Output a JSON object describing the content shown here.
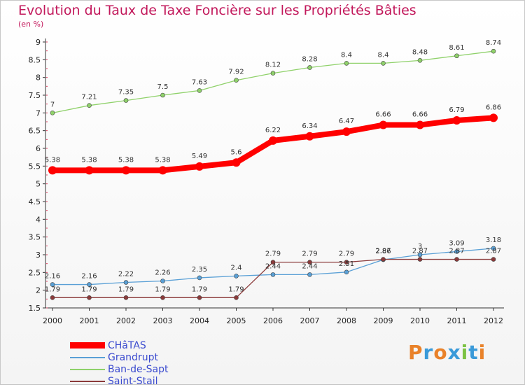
{
  "header": {
    "title": "Evolution du Taux de Taxe Foncière sur les Propriétés Bâties",
    "unit": "(en %)"
  },
  "logo": {
    "text": "Proxiti",
    "letters": [
      "P",
      "r",
      "o",
      "x",
      "i",
      "t",
      "i"
    ],
    "colors": [
      "#e9822a",
      "#3a9ad9",
      "#e9822a",
      "#3a9ad9",
      "#7cc242",
      "#3a9ad9",
      "#e9822a"
    ]
  },
  "chart_data": {
    "type": "line",
    "title": "Evolution du Taux de Taxe Foncière sur les Propriétés Bâties",
    "ylabel": "(en %)",
    "xlabel": "",
    "x": [
      2000,
      2001,
      2002,
      2003,
      2004,
      2005,
      2006,
      2007,
      2008,
      2009,
      2010,
      2011,
      2012
    ],
    "ylim": [
      1.5,
      9
    ],
    "yticks": [
      1.5,
      2,
      2.5,
      3,
      3.5,
      4,
      4.5,
      5,
      5.5,
      6,
      6.5,
      7,
      7.5,
      8,
      8.5,
      9
    ],
    "grid": false,
    "legend_position": "bottom-left",
    "series": [
      {
        "name": "CHâTAS",
        "color": "#ff0000",
        "width": 8,
        "marker": 6,
        "values": [
          5.38,
          5.38,
          5.38,
          5.38,
          5.49,
          5.6,
          6.22,
          6.34,
          6.47,
          6.66,
          6.66,
          6.79,
          6.86
        ],
        "labels": [
          "5.38",
          "5.38",
          "5.38",
          "5.38",
          "5.49",
          "5.6",
          "6.22",
          "6.34",
          "6.47",
          "6.66",
          "6.66",
          "6.79",
          "6.86"
        ]
      },
      {
        "name": "Grandrupt",
        "color": "#5aa0d6",
        "width": 1.3,
        "marker": 3,
        "values": [
          2.16,
          2.16,
          2.22,
          2.26,
          2.35,
          2.4,
          2.44,
          2.44,
          2.51,
          2.86,
          3.0,
          3.09,
          3.18
        ],
        "labels": [
          "2.16",
          "2.16",
          "2.22",
          "2.26",
          "2.35",
          "2.4",
          "2.44",
          "2.44",
          "2.51",
          "2.86",
          "3",
          "3.09",
          "3.18"
        ]
      },
      {
        "name": "Ban-de-Sapt",
        "color": "#8fd16a",
        "width": 1.3,
        "marker": 3,
        "values": [
          7.0,
          7.21,
          7.35,
          7.5,
          7.63,
          7.92,
          8.12,
          8.28,
          8.4,
          8.4,
          8.48,
          8.61,
          8.74
        ],
        "labels": [
          "7",
          "7.21",
          "7.35",
          "7.5",
          "7.63",
          "7.92",
          "8.12",
          "8.28",
          "8.4",
          "8.4",
          "8.48",
          "8.61",
          "8.74"
        ]
      },
      {
        "name": "Saint-Stail",
        "color": "#8b3a3a",
        "width": 1.3,
        "marker": 3,
        "values": [
          1.79,
          1.79,
          1.79,
          1.79,
          1.79,
          1.79,
          2.79,
          2.79,
          2.79,
          2.87,
          2.87,
          2.87,
          2.87
        ],
        "labels": [
          "1.79",
          "1.79",
          "1.79",
          "1.79",
          "1.79",
          "1.79",
          "2.79",
          "2.79",
          "2.79",
          "2.87",
          "2.87",
          "2.87",
          "2.87"
        ]
      }
    ]
  }
}
